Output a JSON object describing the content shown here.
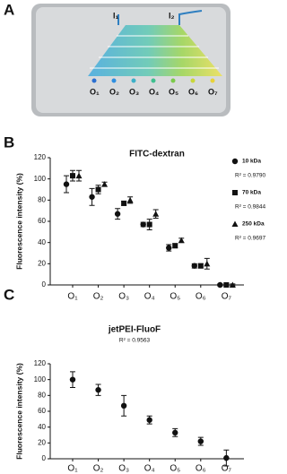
{
  "panel_labels": [
    "A",
    "B",
    "C"
  ],
  "photo": {
    "inlet_labels": [
      "I₁",
      "I₂"
    ],
    "outlet_labels": [
      "O₁",
      "O₂",
      "O₃",
      "O₄",
      "O₅",
      "O₆",
      "O₇"
    ]
  },
  "chart_data": [
    {
      "type": "dot",
      "title": "FITC-dextran",
      "y_label": "Fluorescence intensity (%)",
      "categories": [
        "O₁",
        "O₂",
        "O₃",
        "O₄",
        "O₅",
        "O₆",
        "O₇"
      ],
      "ylim": [
        0,
        120
      ],
      "yticks": [
        0,
        20,
        40,
        60,
        80,
        100,
        120
      ],
      "series": [
        {
          "name": "10 kDa",
          "marker": "circle",
          "color": "#111111",
          "annotation": "R² = 0.9790",
          "values": [
            95,
            83,
            67,
            57,
            35,
            18,
            0
          ],
          "errors": [
            8,
            8,
            5,
            2,
            3,
            2,
            1
          ]
        },
        {
          "name": "70 kDa",
          "marker": "square",
          "color": "#111111",
          "annotation": "R² = 0.9844",
          "values": [
            103,
            90,
            77,
            57,
            37,
            18,
            0
          ],
          "errors": [
            5,
            4,
            2,
            5,
            2,
            2,
            1
          ]
        },
        {
          "name": "250 kDa",
          "marker": "triangle",
          "color": "#111111",
          "annotation": "R² = 0.9697",
          "values": [
            103,
            95,
            80,
            67,
            42,
            20,
            0
          ],
          "errors": [
            5,
            2,
            3,
            4,
            2,
            5,
            1
          ]
        }
      ]
    },
    {
      "type": "dot",
      "title": "jetPEI-FluoF",
      "y_label": "Fluorescence intensity (%)",
      "annotation": "R² = 0.9563",
      "categories": [
        "O₁",
        "O₂",
        "O₃",
        "O₄",
        "O₅",
        "O₆",
        "O₇"
      ],
      "ylim": [
        0,
        120
      ],
      "yticks": [
        0,
        20,
        40,
        60,
        80,
        100,
        120
      ],
      "series": [
        {
          "marker": "circle",
          "color": "#111111",
          "values": [
            100,
            87,
            67,
            49,
            33,
            22,
            1
          ],
          "errors": [
            10,
            7,
            13,
            5,
            5,
            5,
            10
          ]
        }
      ]
    }
  ]
}
